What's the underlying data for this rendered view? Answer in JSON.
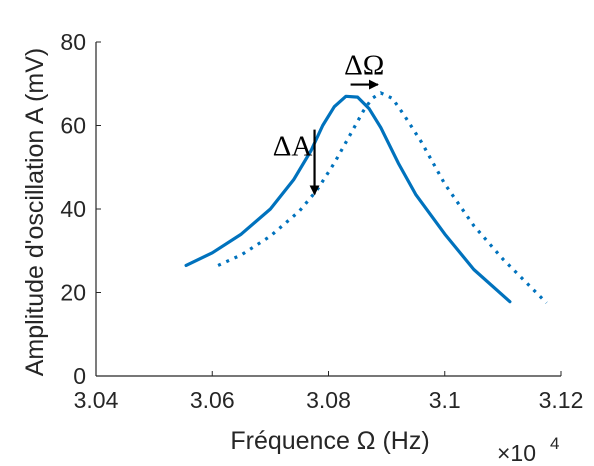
{
  "chart_data": {
    "type": "line",
    "xlabel": "Fréquence Ω (Hz)",
    "ylabel": "Amplitude d'oscillation A (mV)",
    "x_multiplier": "×10",
    "x_multiplier_exp": "4",
    "xlim": [
      3.04,
      3.12
    ],
    "ylim": [
      0,
      80
    ],
    "xticks": [
      3.04,
      3.06,
      3.08,
      3.1,
      3.12
    ],
    "xtick_labels": [
      "3.04",
      "3.06",
      "3.08",
      "3.1",
      "3.12"
    ],
    "yticks": [
      0,
      20,
      40,
      60,
      80
    ],
    "ytick_labels": [
      "0",
      "20",
      "40",
      "60",
      "80"
    ],
    "grid": false,
    "legend": "none",
    "line_color": "#0072BD",
    "series": [
      {
        "style": "solid",
        "x": [
          3.0555,
          3.06,
          3.065,
          3.07,
          3.074,
          3.077,
          3.079,
          3.081,
          3.083,
          3.085,
          3.087,
          3.089,
          3.092,
          3.095,
          3.1,
          3.105,
          3.1112
        ],
        "y": [
          26.5,
          29.5,
          34.0,
          40.0,
          47.0,
          54.0,
          60.0,
          64.5,
          67.0,
          66.8,
          64.0,
          59.5,
          51.0,
          43.5,
          34.0,
          25.5,
          17.8
        ]
      },
      {
        "style": "dotted",
        "x": [
          3.061,
          3.065,
          3.07,
          3.075,
          3.078,
          3.081,
          3.084,
          3.086,
          3.0875,
          3.089,
          3.091,
          3.093,
          3.096,
          3.1,
          3.105,
          3.11,
          3.1175
        ],
        "y": [
          26.5,
          29.0,
          33.5,
          39.5,
          44.5,
          51.0,
          58.5,
          63.5,
          66.5,
          67.8,
          66.5,
          62.5,
          56.0,
          46.0,
          36.0,
          28.0,
          17.5
        ]
      }
    ],
    "annotations": [
      {
        "label": "ΔA",
        "arrow_from": [
          3.0776,
          59.0
        ],
        "arrow_to": [
          3.0776,
          43.5
        ]
      },
      {
        "label": "ΔΩ",
        "arrow_from": [
          3.0838,
          69.8
        ],
        "arrow_to": [
          3.0885,
          69.8
        ]
      }
    ]
  }
}
